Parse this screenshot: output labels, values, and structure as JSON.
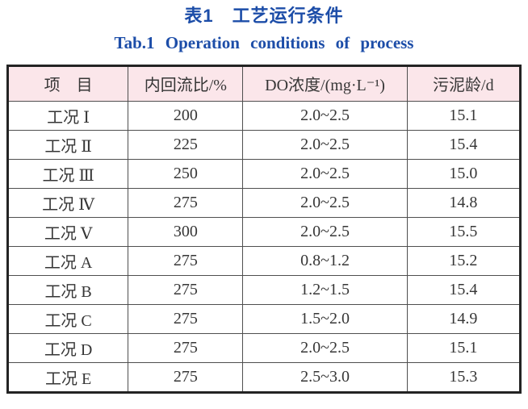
{
  "titles": {
    "zh": "表1　工艺运行条件",
    "en": "Tab.1  Operation conditions of process",
    "accent_color": "#1c4da8"
  },
  "table": {
    "header_bg": "#fbe6ea",
    "outer_border_color": "#232323",
    "inner_border_color": "#4f4f4f",
    "columns": [
      "项　目",
      "内回流比/%",
      "DO浓度/(mg·L⁻¹)",
      "污泥龄/d"
    ],
    "row_keys": [
      "item",
      "reflux",
      "do",
      "age"
    ],
    "rows": [
      {
        "item": "工况 Ⅰ",
        "reflux": "200",
        "do": "2.0~2.5",
        "age": "15.1"
      },
      {
        "item": "工况 Ⅱ",
        "reflux": "225",
        "do": "2.0~2.5",
        "age": "15.4"
      },
      {
        "item": "工况 Ⅲ",
        "reflux": "250",
        "do": "2.0~2.5",
        "age": "15.0"
      },
      {
        "item": "工况 Ⅳ",
        "reflux": "275",
        "do": "2.0~2.5",
        "age": "14.8"
      },
      {
        "item": "工况 Ⅴ",
        "reflux": "300",
        "do": "2.0~2.5",
        "age": "15.5"
      },
      {
        "item": "工况 A",
        "reflux": "275",
        "do": "0.8~1.2",
        "age": "15.2"
      },
      {
        "item": "工况 B",
        "reflux": "275",
        "do": "1.2~1.5",
        "age": "15.4"
      },
      {
        "item": "工况 C",
        "reflux": "275",
        "do": "1.5~2.0",
        "age": "14.9"
      },
      {
        "item": "工况 D",
        "reflux": "275",
        "do": "2.0~2.5",
        "age": "15.1"
      },
      {
        "item": "工况 E",
        "reflux": "275",
        "do": "2.5~3.0",
        "age": "15.3"
      }
    ]
  }
}
